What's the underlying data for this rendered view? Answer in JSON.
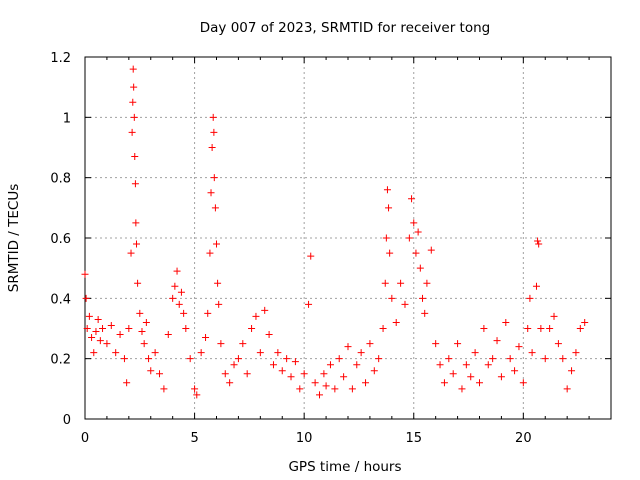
{
  "chart_data": {
    "type": "scatter",
    "title": "Day 007 of 2023, SRMTID for receiver tong",
    "xlabel": "GPS time / hours",
    "ylabel": "SRMTID / TECUs",
    "xlim": [
      0,
      24
    ],
    "ylim": [
      0,
      1.2
    ],
    "x_ticks": [
      0,
      5,
      10,
      15,
      20
    ],
    "x_tick_labels": [
      "0",
      "5",
      "10",
      "15",
      "20"
    ],
    "y_ticks": [
      0,
      0.2,
      0.4,
      0.6,
      0.8,
      1,
      1.2
    ],
    "y_tick_labels": [
      "0",
      "0.2",
      "0.4",
      "0.6",
      "0.8",
      "1",
      "1.2"
    ],
    "grid": true,
    "marker": "+",
    "color": "#ff0000",
    "series": [
      {
        "name": "SRMTID",
        "points": [
          [
            0.0,
            0.48
          ],
          [
            0.05,
            0.4
          ],
          [
            0.1,
            0.3
          ],
          [
            0.2,
            0.34
          ],
          [
            0.3,
            0.27
          ],
          [
            0.4,
            0.22
          ],
          [
            0.5,
            0.29
          ],
          [
            0.6,
            0.33
          ],
          [
            0.7,
            0.26
          ],
          [
            0.8,
            0.3
          ],
          [
            1.0,
            0.25
          ],
          [
            1.2,
            0.31
          ],
          [
            1.4,
            0.22
          ],
          [
            1.6,
            0.28
          ],
          [
            1.8,
            0.2
          ],
          [
            1.9,
            0.12
          ],
          [
            2.0,
            0.3
          ],
          [
            2.1,
            0.55
          ],
          [
            2.15,
            0.95
          ],
          [
            2.18,
            1.05
          ],
          [
            2.2,
            1.16
          ],
          [
            2.22,
            1.1
          ],
          [
            2.25,
            1.0
          ],
          [
            2.27,
            0.87
          ],
          [
            2.3,
            0.78
          ],
          [
            2.32,
            0.65
          ],
          [
            2.35,
            0.58
          ],
          [
            2.4,
            0.45
          ],
          [
            2.5,
            0.35
          ],
          [
            2.6,
            0.29
          ],
          [
            2.7,
            0.25
          ],
          [
            2.8,
            0.32
          ],
          [
            2.9,
            0.2
          ],
          [
            3.0,
            0.16
          ],
          [
            3.2,
            0.22
          ],
          [
            3.4,
            0.15
          ],
          [
            3.6,
            0.1
          ],
          [
            3.8,
            0.28
          ],
          [
            4.0,
            0.4
          ],
          [
            4.1,
            0.44
          ],
          [
            4.2,
            0.49
          ],
          [
            4.3,
            0.38
          ],
          [
            4.4,
            0.42
          ],
          [
            4.5,
            0.35
          ],
          [
            4.6,
            0.3
          ],
          [
            4.8,
            0.2
          ],
          [
            5.0,
            0.1
          ],
          [
            5.1,
            0.08
          ],
          [
            5.3,
            0.22
          ],
          [
            5.5,
            0.27
          ],
          [
            5.6,
            0.35
          ],
          [
            5.7,
            0.55
          ],
          [
            5.75,
            0.75
          ],
          [
            5.8,
            0.9
          ],
          [
            5.85,
            1.0
          ],
          [
            5.88,
            0.95
          ],
          [
            5.9,
            0.8
          ],
          [
            5.95,
            0.7
          ],
          [
            6.0,
            0.58
          ],
          [
            6.05,
            0.45
          ],
          [
            6.1,
            0.38
          ],
          [
            6.2,
            0.25
          ],
          [
            6.4,
            0.15
          ],
          [
            6.6,
            0.12
          ],
          [
            6.8,
            0.18
          ],
          [
            7.0,
            0.2
          ],
          [
            7.2,
            0.25
          ],
          [
            7.4,
            0.15
          ],
          [
            7.6,
            0.3
          ],
          [
            7.8,
            0.34
          ],
          [
            8.0,
            0.22
          ],
          [
            8.2,
            0.36
          ],
          [
            8.4,
            0.28
          ],
          [
            8.6,
            0.18
          ],
          [
            8.8,
            0.22
          ],
          [
            9.0,
            0.16
          ],
          [
            9.2,
            0.2
          ],
          [
            9.4,
            0.14
          ],
          [
            9.6,
            0.19
          ],
          [
            9.8,
            0.1
          ],
          [
            10.0,
            0.15
          ],
          [
            10.2,
            0.38
          ],
          [
            10.3,
            0.54
          ],
          [
            10.5,
            0.12
          ],
          [
            10.7,
            0.08
          ],
          [
            10.9,
            0.15
          ],
          [
            11.0,
            0.11
          ],
          [
            11.2,
            0.18
          ],
          [
            11.4,
            0.1
          ],
          [
            11.6,
            0.2
          ],
          [
            11.8,
            0.14
          ],
          [
            12.0,
            0.24
          ],
          [
            12.2,
            0.1
          ],
          [
            12.4,
            0.18
          ],
          [
            12.6,
            0.22
          ],
          [
            12.8,
            0.12
          ],
          [
            13.0,
            0.25
          ],
          [
            13.2,
            0.16
          ],
          [
            13.4,
            0.2
          ],
          [
            13.6,
            0.3
          ],
          [
            13.7,
            0.45
          ],
          [
            13.75,
            0.6
          ],
          [
            13.8,
            0.76
          ],
          [
            13.85,
            0.7
          ],
          [
            13.9,
            0.55
          ],
          [
            14.0,
            0.4
          ],
          [
            14.2,
            0.32
          ],
          [
            14.4,
            0.45
          ],
          [
            14.6,
            0.38
          ],
          [
            14.8,
            0.6
          ],
          [
            14.9,
            0.73
          ],
          [
            15.0,
            0.65
          ],
          [
            15.1,
            0.55
          ],
          [
            15.2,
            0.62
          ],
          [
            15.3,
            0.5
          ],
          [
            15.4,
            0.4
          ],
          [
            15.5,
            0.35
          ],
          [
            15.6,
            0.45
          ],
          [
            15.8,
            0.56
          ],
          [
            16.0,
            0.25
          ],
          [
            16.2,
            0.18
          ],
          [
            16.4,
            0.12
          ],
          [
            16.6,
            0.2
          ],
          [
            16.8,
            0.15
          ],
          [
            17.0,
            0.25
          ],
          [
            17.2,
            0.1
          ],
          [
            17.4,
            0.18
          ],
          [
            17.6,
            0.14
          ],
          [
            17.8,
            0.22
          ],
          [
            18.0,
            0.12
          ],
          [
            18.2,
            0.3
          ],
          [
            18.4,
            0.18
          ],
          [
            18.6,
            0.2
          ],
          [
            18.8,
            0.26
          ],
          [
            19.0,
            0.14
          ],
          [
            19.2,
            0.32
          ],
          [
            19.4,
            0.2
          ],
          [
            19.6,
            0.16
          ],
          [
            19.8,
            0.24
          ],
          [
            20.0,
            0.12
          ],
          [
            20.2,
            0.3
          ],
          [
            20.3,
            0.4
          ],
          [
            20.4,
            0.22
          ],
          [
            20.6,
            0.44
          ],
          [
            20.65,
            0.59
          ],
          [
            20.7,
            0.58
          ],
          [
            20.8,
            0.3
          ],
          [
            21.0,
            0.2
          ],
          [
            21.2,
            0.3
          ],
          [
            21.4,
            0.34
          ],
          [
            21.6,
            0.25
          ],
          [
            21.8,
            0.2
          ],
          [
            22.0,
            0.1
          ],
          [
            22.2,
            0.16
          ],
          [
            22.4,
            0.22
          ],
          [
            22.6,
            0.3
          ],
          [
            22.8,
            0.32
          ]
        ]
      }
    ]
  }
}
